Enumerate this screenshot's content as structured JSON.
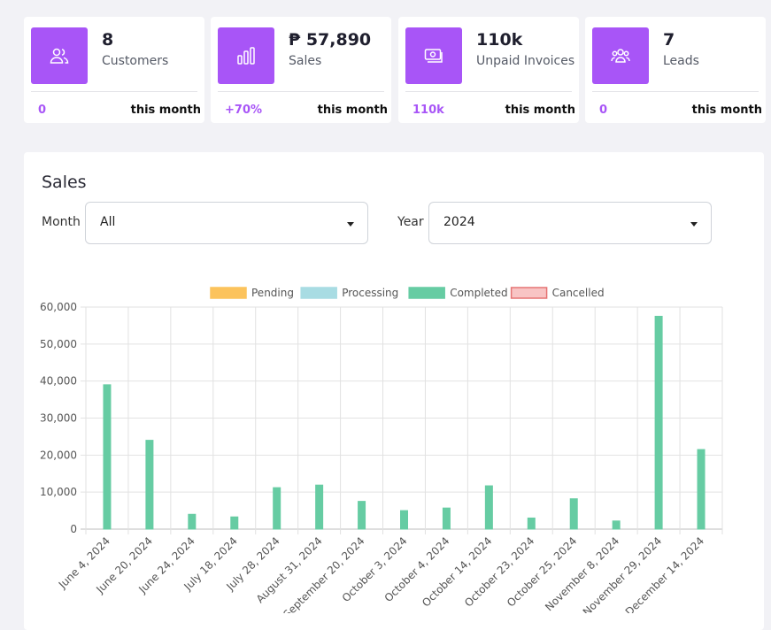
{
  "cards": [
    {
      "value": "8",
      "label": "Customers",
      "change": "0",
      "period": "this month",
      "icon": "users-icon"
    },
    {
      "value": "₱ 57,890",
      "label": "Sales",
      "change": "+70%",
      "period": "this month",
      "icon": "bar-chart-icon"
    },
    {
      "value": "110k",
      "label": "Unpaid Invoices",
      "change": "110k",
      "period": "this month",
      "icon": "cash-icon"
    },
    {
      "value": "7",
      "label": "Leads",
      "change": "0",
      "period": "this month",
      "icon": "group-icon"
    }
  ],
  "sales_panel": {
    "title": "Sales",
    "month_label": "Month",
    "month_value": "All",
    "year_label": "Year",
    "year_value": "2024"
  },
  "colors": {
    "accent": "#a855f7",
    "pending": "#fcc35c",
    "processing": "#a8dce3",
    "completed": "#66cca3",
    "cancelled": "#f8c4c4",
    "cancelled_border": "#e57373"
  },
  "chart_data": {
    "type": "bar",
    "title": "",
    "legend": [
      "Pending",
      "Processing",
      "Completed",
      "Cancelled"
    ],
    "legend_position": "top",
    "categories": [
      "June 4, 2024",
      "June 20, 2024",
      "June 24, 2024",
      "July 18, 2024",
      "July 28, 2024",
      "August 31, 2024",
      "September 20, 2024",
      "October 3, 2024",
      "October 4, 2024",
      "October 14, 2024",
      "October 23, 2024",
      "October 25, 2024",
      "November 8, 2024",
      "November 29, 2024",
      "December 14, 2024"
    ],
    "series": [
      {
        "name": "Pending",
        "values": [
          0,
          0,
          0,
          0,
          0,
          0,
          0,
          0,
          0,
          0,
          0,
          0,
          0,
          0,
          0
        ]
      },
      {
        "name": "Processing",
        "values": [
          0,
          0,
          0,
          0,
          0,
          0,
          0,
          0,
          0,
          0,
          0,
          0,
          0,
          0,
          0
        ]
      },
      {
        "name": "Completed",
        "values": [
          39000,
          24000,
          4000,
          3300,
          11200,
          11900,
          7500,
          5000,
          5700,
          11700,
          3000,
          8200,
          2200,
          57500,
          21500
        ]
      },
      {
        "name": "Cancelled",
        "values": [
          0,
          0,
          0,
          0,
          0,
          0,
          0,
          0,
          0,
          0,
          0,
          0,
          0,
          0,
          0
        ]
      }
    ],
    "y_ticks": [
      "0",
      "10,000",
      "20,000",
      "30,000",
      "40,000",
      "50,000",
      "60,000"
    ],
    "ylim": [
      0,
      60000
    ],
    "grid": true
  }
}
